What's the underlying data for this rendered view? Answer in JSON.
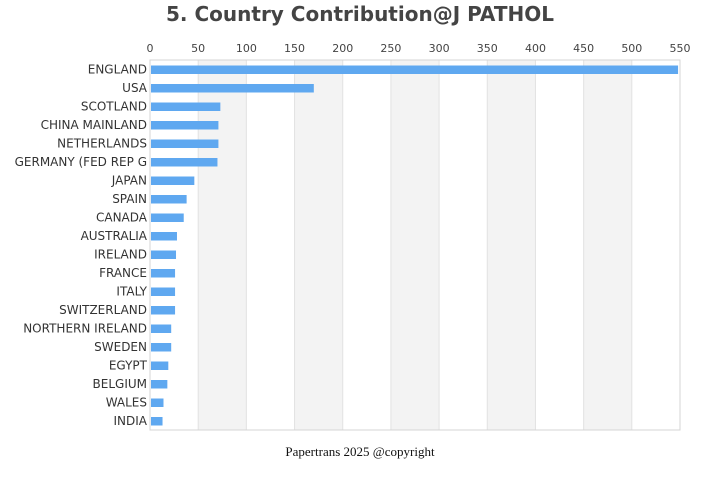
{
  "chart_data": {
    "type": "bar",
    "orientation": "horizontal",
    "title": "5. Country Contribution@J PATHOL",
    "xlabel": "",
    "ylabel": "",
    "xlim": [
      0,
      550
    ],
    "x_ticks": [
      0,
      50,
      100,
      150,
      200,
      250,
      300,
      350,
      400,
      450,
      500,
      550
    ],
    "x_axis_position": "top",
    "grid": "alternating vertical bands",
    "legend": "none",
    "bar_color": "#5fa8f0",
    "band_color": "#f3f3f3",
    "categories": [
      "ENGLAND",
      "USA",
      "SCOTLAND",
      "CHINA MAINLAND",
      "NETHERLANDS",
      "GERMANY (FED REP G",
      "JAPAN",
      "SPAIN",
      "CANADA",
      "AUSTRALIA",
      "IRELAND",
      "FRANCE",
      "ITALY",
      "SWITZERLAND",
      "NORTHERN IRELAND",
      "SWEDEN",
      "EGYPT",
      "BELGIUM",
      "WALES",
      "INDIA"
    ],
    "values": [
      548,
      170,
      73,
      71,
      71,
      70,
      46,
      38,
      35,
      28,
      27,
      26,
      26,
      26,
      22,
      22,
      19,
      18,
      14,
      13
    ]
  },
  "footer": "Papertrans 2025 @copyright"
}
